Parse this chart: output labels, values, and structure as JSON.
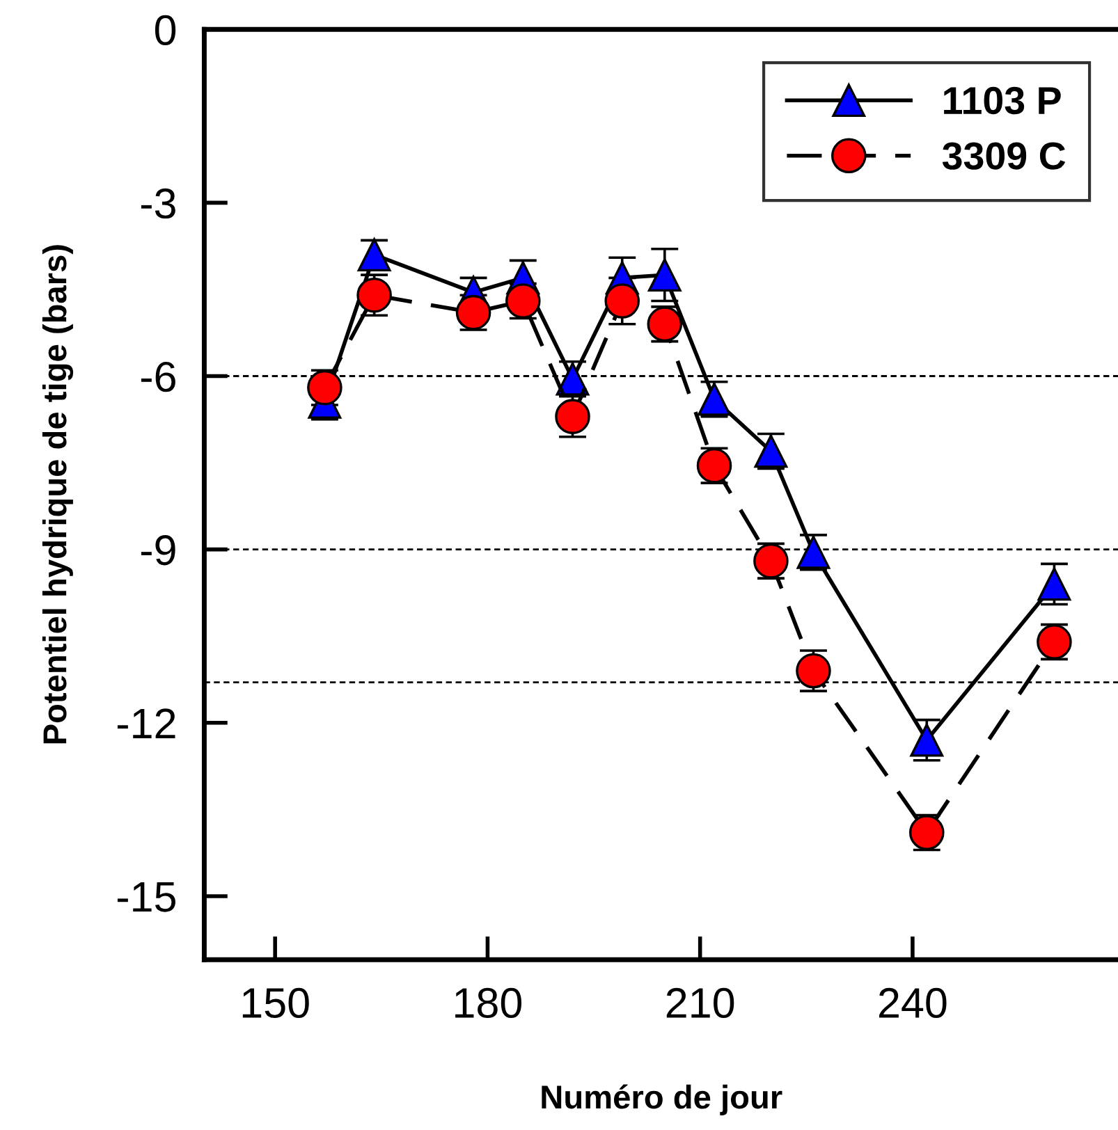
{
  "chart_data": {
    "type": "line",
    "xlabel": "Numéro de jour",
    "ylabel": "Potentiel hydrique de tige (bars)",
    "x": [
      157,
      164,
      178,
      185,
      192,
      199,
      205,
      212,
      220,
      226,
      242,
      260
    ],
    "series": [
      {
        "name": "1103 P",
        "color": "#0000ff",
        "marker": "triangle",
        "line_style": "solid",
        "values": [
          -6.45,
          -3.9,
          -4.55,
          -4.3,
          -6.05,
          -4.3,
          -4.25,
          -6.4,
          -7.3,
          -9.05,
          -12.3,
          -9.6
        ],
        "errors": [
          0.3,
          0.25,
          0.25,
          0.3,
          0.3,
          0.35,
          0.45,
          0.3,
          0.3,
          0.3,
          0.35,
          0.35
        ]
      },
      {
        "name": "3309 C",
        "color": "#ff0000",
        "marker": "circle",
        "line_style": "dashed",
        "values": [
          -6.2,
          -4.6,
          -4.9,
          -4.7,
          -6.7,
          -4.7,
          -5.1,
          -7.55,
          -9.2,
          -11.1,
          -13.9,
          -10.6
        ],
        "errors": [
          0.3,
          0.35,
          0.3,
          0.3,
          0.35,
          0.4,
          0.3,
          0.3,
          0.3,
          0.35,
          0.3,
          0.3
        ]
      }
    ],
    "xlim": [
      140,
      269
    ],
    "xticks": [
      150,
      180,
      210,
      240
    ],
    "ylim": [
      -16.1,
      0
    ],
    "yticks": [
      0,
      -3,
      -6,
      -9,
      -12,
      -15
    ],
    "ref_lines": [
      {
        "axis": "y",
        "value": -6,
        "line_style": "dashed"
      },
      {
        "axis": "y",
        "value": -9,
        "line_style": "dashed"
      },
      {
        "axis": "y",
        "value": -11.3,
        "line_style": "dashed"
      }
    ],
    "grid": false,
    "legend": "top right"
  }
}
